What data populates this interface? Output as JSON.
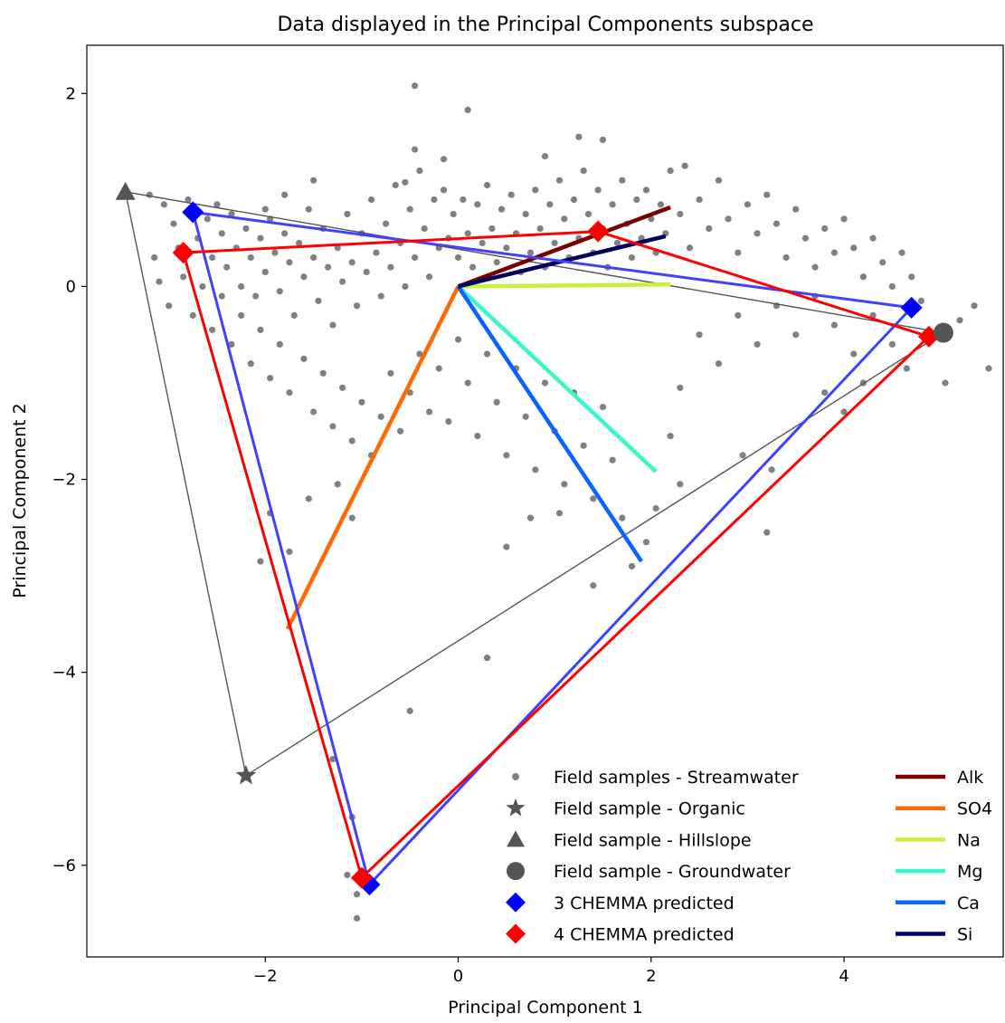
{
  "chart_data": {
    "type": "scatter",
    "title": "Data displayed in the Principal Components subspace",
    "xlabel": "Principal Component 1",
    "ylabel": "Principal Component 2",
    "xlim": [
      -3.85,
      5.65
    ],
    "ylim": [
      -6.95,
      2.5
    ],
    "xticks": [
      -2,
      0,
      2,
      4
    ],
    "yticks": [
      2,
      0,
      -2,
      -4,
      -6
    ],
    "grid": false,
    "legend_position": "lower-right",
    "colors": {
      "streamwater": "#808080",
      "endmember": "#555555",
      "chemma3": "#0000ff",
      "chemma4": "#ff0000",
      "mixing_triangle": "#555555"
    },
    "field_samples": [
      {
        "name": "Field sample - Organic",
        "marker": "star",
        "x": -2.2,
        "y": -5.07
      },
      {
        "name": "Field sample - Hillslope",
        "marker": "triangle",
        "x": -3.45,
        "y": 0.98
      },
      {
        "name": "Field sample - Groundwater",
        "marker": "circle",
        "x": 5.03,
        "y": -0.48
      }
    ],
    "chemma3": {
      "name": "3 CHEMMA predicted",
      "points": [
        [
          -2.75,
          0.77
        ],
        [
          4.7,
          -0.22
        ],
        [
          -0.92,
          -6.2
        ]
      ]
    },
    "chemma4": {
      "name": "4 CHEMMA predicted",
      "points": [
        [
          -2.85,
          0.35
        ],
        [
          1.45,
          0.57
        ],
        [
          4.88,
          -0.52
        ],
        [
          -1.0,
          -6.13
        ]
      ]
    },
    "vectors": [
      {
        "name": "Alk",
        "color": "#7a0000",
        "x": 2.2,
        "y": 0.82
      },
      {
        "name": "SO4",
        "color": "#ff6a00",
        "x": -1.77,
        "y": -3.55
      },
      {
        "name": "Na",
        "color": "#c8f03c",
        "x": 2.2,
        "y": 0.02
      },
      {
        "name": "Mg",
        "color": "#3cf5c8",
        "x": 2.05,
        "y": -1.92
      },
      {
        "name": "Ca",
        "color": "#0a64ff",
        "x": 1.9,
        "y": -2.85
      },
      {
        "name": "Si",
        "color": "#000064",
        "x": 2.15,
        "y": 0.52
      }
    ],
    "legend": {
      "markers": [
        {
          "label": "Field samples - Streamwater",
          "marker": "dot",
          "color": "#808080"
        },
        {
          "label": "Field sample - Organic",
          "marker": "star",
          "color": "#555555"
        },
        {
          "label": "Field sample - Hillslope",
          "marker": "triangle",
          "color": "#555555"
        },
        {
          "label": "Field sample - Groundwater",
          "marker": "circle",
          "color": "#555555"
        },
        {
          "label": "3 CHEMMA predicted",
          "marker": "diamond",
          "color": "#0000ff"
        },
        {
          "label": "4 CHEMMA predicted",
          "marker": "diamond",
          "color": "#ff0000"
        }
      ],
      "vectors": [
        "Alk",
        "SO4",
        "Na",
        "Mg",
        "Ca",
        "Si"
      ]
    },
    "streamwater_samples": [
      [
        -3.2,
        0.95
      ],
      [
        -3.05,
        0.85
      ],
      [
        -2.95,
        0.65
      ],
      [
        -2.9,
        0.4
      ],
      [
        -2.8,
        0.9
      ],
      [
        -2.7,
        0.5
      ],
      [
        -2.6,
        0.7
      ],
      [
        -2.55,
        0.3
      ],
      [
        -2.5,
        0.85
      ],
      [
        -2.45,
        0.55
      ],
      [
        -2.4,
        0.2
      ],
      [
        -2.35,
        0.75
      ],
      [
        -2.3,
        0.4
      ],
      [
        -2.25,
        0.0
      ],
      [
        -2.2,
        0.6
      ],
      [
        -2.15,
        0.3
      ],
      [
        -2.1,
        -0.1
      ],
      [
        -2.05,
        0.5
      ],
      [
        -2.0,
        0.15
      ],
      [
        -1.95,
        0.7
      ],
      [
        -1.9,
        0.35
      ],
      [
        -1.85,
        -0.05
      ],
      [
        -1.8,
        0.55
      ],
      [
        -1.75,
        0.25
      ],
      [
        -1.7,
        -0.3
      ],
      [
        -1.65,
        0.45
      ],
      [
        -1.6,
        0.1
      ],
      [
        -1.55,
        0.8
      ],
      [
        -1.5,
        0.3
      ],
      [
        -1.45,
        -0.15
      ],
      [
        -1.4,
        0.6
      ],
      [
        -1.35,
        0.2
      ],
      [
        -1.3,
        -0.4
      ],
      [
        -1.25,
        0.4
      ],
      [
        -1.2,
        0.05
      ],
      [
        -1.15,
        0.75
      ],
      [
        -1.1,
        0.25
      ],
      [
        -1.05,
        -0.2
      ],
      [
        -1.0,
        0.55
      ],
      [
        -0.95,
        0.15
      ],
      [
        -0.9,
        0.9
      ],
      [
        -0.85,
        0.35
      ],
      [
        -0.8,
        -0.1
      ],
      [
        -0.75,
        0.65
      ],
      [
        -0.7,
        0.2
      ],
      [
        -0.65,
        1.05
      ],
      [
        -0.6,
        0.45
      ],
      [
        -0.55,
        0.0
      ],
      [
        -0.5,
        0.8
      ],
      [
        -0.45,
        0.3
      ],
      [
        -0.4,
        1.2
      ],
      [
        -0.35,
        0.6
      ],
      [
        -0.3,
        0.1
      ],
      [
        -0.25,
        0.9
      ],
      [
        -0.2,
        0.4
      ],
      [
        -0.15,
        1.0
      ],
      [
        -0.1,
        0.5
      ],
      [
        -0.05,
        0.75
      ],
      [
        0.0,
        0.3
      ],
      [
        0.05,
        0.9
      ],
      [
        0.1,
        0.55
      ],
      [
        0.15,
        0.2
      ],
      [
        0.2,
        0.85
      ],
      [
        0.25,
        0.45
      ],
      [
        0.3,
        1.05
      ],
      [
        0.35,
        0.6
      ],
      [
        0.4,
        0.25
      ],
      [
        0.45,
        0.8
      ],
      [
        0.5,
        0.4
      ],
      [
        0.55,
        0.95
      ],
      [
        0.6,
        0.55
      ],
      [
        0.65,
        0.15
      ],
      [
        0.7,
        0.75
      ],
      [
        0.75,
        0.35
      ],
      [
        0.8,
        1.0
      ],
      [
        0.85,
        0.6
      ],
      [
        0.9,
        0.2
      ],
      [
        0.95,
        0.85
      ],
      [
        1.0,
        0.45
      ],
      [
        1.05,
        1.1
      ],
      [
        1.1,
        0.7
      ],
      [
        1.15,
        0.3
      ],
      [
        1.2,
        0.9
      ],
      [
        1.25,
        0.5
      ],
      [
        1.3,
        1.2
      ],
      [
        1.35,
        0.75
      ],
      [
        1.4,
        0.35
      ],
      [
        1.45,
        1.0
      ],
      [
        1.5,
        0.6
      ],
      [
        1.55,
        0.2
      ],
      [
        1.6,
        0.85
      ],
      [
        1.65,
        0.45
      ],
      [
        1.7,
        1.1
      ],
      [
        1.75,
        0.65
      ],
      [
        1.8,
        0.3
      ],
      [
        1.85,
        0.9
      ],
      [
        1.9,
        0.5
      ],
      [
        1.95,
        1.0
      ],
      [
        2.0,
        0.7
      ],
      [
        2.05,
        0.35
      ],
      [
        2.1,
        0.85
      ],
      [
        2.15,
        0.55
      ],
      [
        2.2,
        1.2
      ],
      [
        2.3,
        0.75
      ],
      [
        2.4,
        0.4
      ],
      [
        2.5,
        0.9
      ],
      [
        2.6,
        0.6
      ],
      [
        2.7,
        1.1
      ],
      [
        2.8,
        0.7
      ],
      [
        2.9,
        0.35
      ],
      [
        3.0,
        0.85
      ],
      [
        3.1,
        0.55
      ],
      [
        3.2,
        0.95
      ],
      [
        3.3,
        0.65
      ],
      [
        3.4,
        0.3
      ],
      [
        3.5,
        0.8
      ],
      [
        3.6,
        0.5
      ],
      [
        3.7,
        0.2
      ],
      [
        3.8,
        0.6
      ],
      [
        3.9,
        0.35
      ],
      [
        4.0,
        0.7
      ],
      [
        4.1,
        0.4
      ],
      [
        4.2,
        0.1
      ],
      [
        4.3,
        0.5
      ],
      [
        4.4,
        0.25
      ],
      [
        4.5,
        0.0
      ],
      [
        4.6,
        0.35
      ],
      [
        4.7,
        0.1
      ],
      [
        4.8,
        -0.15
      ],
      [
        5.2,
        -0.35
      ],
      [
        5.35,
        -0.2
      ],
      [
        5.5,
        -0.85
      ],
      [
        5.05,
        -1.0
      ],
      [
        -3.15,
        0.3
      ],
      [
        -3.1,
        0.05
      ],
      [
        -3.0,
        -0.2
      ],
      [
        -2.85,
        0.1
      ],
      [
        -2.75,
        -0.3
      ],
      [
        -2.65,
        0.0
      ],
      [
        -2.55,
        -0.45
      ],
      [
        -2.45,
        -0.1
      ],
      [
        -2.35,
        -0.6
      ],
      [
        -2.25,
        -0.3
      ],
      [
        -2.15,
        -0.8
      ],
      [
        -2.05,
        -0.45
      ],
      [
        -1.95,
        -0.95
      ],
      [
        -1.85,
        -0.6
      ],
      [
        -1.75,
        -1.1
      ],
      [
        -1.6,
        -0.75
      ],
      [
        -1.5,
        -1.3
      ],
      [
        -1.4,
        -0.9
      ],
      [
        -1.3,
        -1.45
      ],
      [
        -1.2,
        -1.05
      ],
      [
        -1.1,
        -1.6
      ],
      [
        -1.0,
        -1.2
      ],
      [
        -0.9,
        -1.75
      ],
      [
        -0.8,
        -1.35
      ],
      [
        -0.7,
        -0.9
      ],
      [
        -0.6,
        -1.5
      ],
      [
        -0.5,
        -1.1
      ],
      [
        -0.4,
        -0.7
      ],
      [
        -0.3,
        -1.3
      ],
      [
        -0.2,
        -0.85
      ],
      [
        -0.1,
        -1.4
      ],
      [
        0.0,
        -0.55
      ],
      [
        0.1,
        -1.0
      ],
      [
        0.2,
        -1.55
      ],
      [
        0.3,
        -0.7
      ],
      [
        0.4,
        -1.2
      ],
      [
        0.5,
        -1.75
      ],
      [
        0.6,
        -0.85
      ],
      [
        0.7,
        -1.35
      ],
      [
        0.8,
        -1.9
      ],
      [
        0.9,
        -1.0
      ],
      [
        1.0,
        -1.5
      ],
      [
        1.1,
        -2.05
      ],
      [
        1.2,
        -1.1
      ],
      [
        1.3,
        -1.65
      ],
      [
        1.4,
        -2.2
      ],
      [
        1.5,
        -1.25
      ],
      [
        1.6,
        -1.8
      ],
      [
        1.7,
        -2.4
      ],
      [
        1.8,
        -2.9
      ],
      [
        1.95,
        -2.65
      ],
      [
        1.05,
        -2.35
      ],
      [
        0.75,
        -2.4
      ],
      [
        0.5,
        -2.7
      ],
      [
        1.4,
        -3.1
      ],
      [
        0.3,
        -3.85
      ],
      [
        -1.1,
        -2.4
      ],
      [
        -1.25,
        -2.05
      ],
      [
        -1.55,
        -2.2
      ],
      [
        -1.75,
        -2.75
      ],
      [
        -1.95,
        -2.35
      ],
      [
        -2.05,
        -2.85
      ],
      [
        2.3,
        -1.05
      ],
      [
        2.5,
        -0.5
      ],
      [
        2.7,
        -0.8
      ],
      [
        2.9,
        -0.3
      ],
      [
        3.1,
        -0.6
      ],
      [
        3.3,
        -0.2
      ],
      [
        3.5,
        -0.5
      ],
      [
        3.7,
        -0.1
      ],
      [
        3.9,
        -0.4
      ],
      [
        4.1,
        -0.7
      ],
      [
        4.3,
        -0.3
      ],
      [
        4.5,
        -0.6
      ],
      [
        4.65,
        -0.85
      ],
      [
        4.2,
        -1.0
      ],
      [
        4.0,
        -1.3
      ],
      [
        3.8,
        -1.1
      ],
      [
        2.95,
        -1.75
      ],
      [
        2.3,
        -2.05
      ],
      [
        2.2,
        -1.55
      ],
      [
        3.25,
        -1.9
      ],
      [
        2.05,
        -2.3
      ],
      [
        3.2,
        -2.55
      ],
      [
        -0.45,
        2.08
      ],
      [
        0.1,
        1.83
      ],
      [
        1.25,
        1.55
      ],
      [
        1.5,
        1.52
      ],
      [
        0.9,
        1.35
      ],
      [
        -0.45,
        1.42
      ],
      [
        -0.15,
        1.32
      ],
      [
        2.35,
        1.25
      ],
      [
        -0.55,
        1.08
      ],
      [
        -1.5,
        1.1
      ],
      [
        -1.8,
        0.95
      ],
      [
        -2.0,
        0.8
      ],
      [
        -0.5,
        -4.4
      ],
      [
        -1.1,
        -5.5
      ],
      [
        -1.05,
        -6.3
      ],
      [
        -1.05,
        -6.55
      ],
      [
        -1.15,
        -6.1
      ],
      [
        -1.3,
        -4.9
      ]
    ]
  }
}
